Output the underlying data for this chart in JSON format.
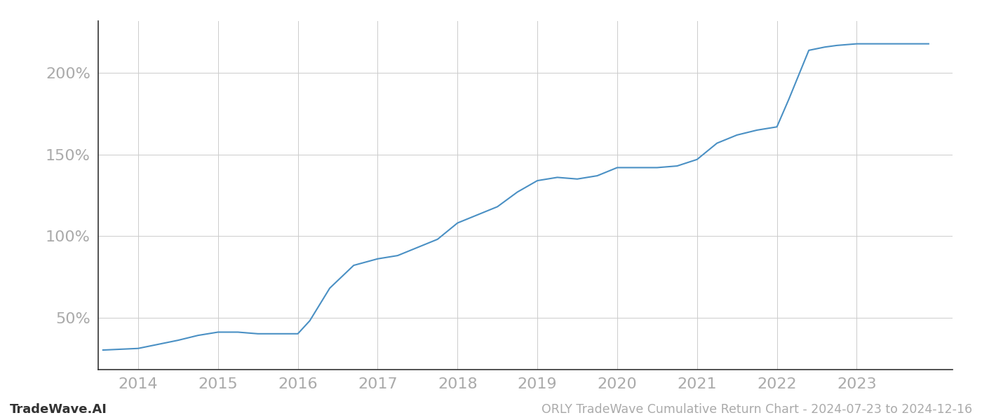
{
  "x_values": [
    2013.56,
    2014.0,
    2014.2,
    2014.5,
    2014.75,
    2015.0,
    2015.25,
    2015.5,
    2015.75,
    2016.0,
    2016.15,
    2016.4,
    2016.7,
    2017.0,
    2017.25,
    2017.5,
    2017.75,
    2018.0,
    2018.25,
    2018.5,
    2018.75,
    2019.0,
    2019.25,
    2019.5,
    2019.75,
    2020.0,
    2020.25,
    2020.5,
    2020.75,
    2021.0,
    2021.25,
    2021.5,
    2021.75,
    2022.0,
    2022.15,
    2022.4,
    2022.6,
    2022.75,
    2023.0,
    2023.5,
    2023.9
  ],
  "y_values": [
    30,
    31,
    33,
    36,
    39,
    41,
    41,
    40,
    40,
    40,
    48,
    68,
    82,
    86,
    88,
    93,
    98,
    108,
    113,
    118,
    127,
    134,
    136,
    135,
    137,
    142,
    142,
    142,
    143,
    147,
    157,
    162,
    165,
    167,
    184,
    214,
    216,
    217,
    218,
    218,
    218
  ],
  "line_color": "#4a90c4",
  "line_width": 1.5,
  "bg_color": "#ffffff",
  "grid_color": "#cccccc",
  "title": "ORLY TradeWave Cumulative Return Chart - 2024-07-23 to 2024-12-16",
  "watermark": "TradeWave.AI",
  "yticks": [
    50,
    100,
    150,
    200
  ],
  "ytick_labels": [
    "50%",
    "100%",
    "150%",
    "200%"
  ],
  "xticks": [
    2014,
    2015,
    2016,
    2017,
    2018,
    2019,
    2020,
    2021,
    2022,
    2023
  ],
  "xlim": [
    2013.5,
    2024.2
  ],
  "ylim": [
    18,
    232
  ],
  "tick_color": "#aaaaaa",
  "axis_color": "#333333",
  "label_fontsize": 16,
  "title_fontsize": 12.5,
  "watermark_fontsize": 13
}
